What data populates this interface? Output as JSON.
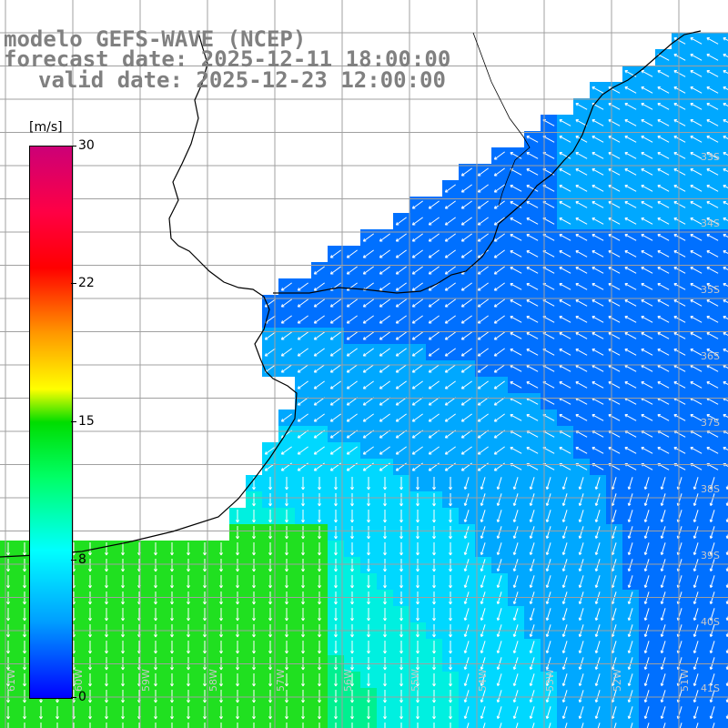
{
  "title": {
    "model": "modelo GEFS-WAVE (NCEP)",
    "forecast": "forecast date: 2025-12-11 18:00:00",
    "valid": "valid date: 2025-12-23 12:00:00"
  },
  "colorbar": {
    "unit": "[m/s]",
    "ticks": [
      "30",
      "22",
      "15",
      "8",
      "0"
    ],
    "range": [
      0,
      30
    ],
    "colors": [
      "#0000ff",
      "#00a0ff",
      "#00ffff",
      "#00ff66",
      "#00dd00",
      "#ffff00",
      "#ff9900",
      "#ff0000",
      "#cc0077"
    ]
  },
  "lon_labels": [
    "61W",
    "60W",
    "59W",
    "58W",
    "57W",
    "56W",
    "55W",
    "54W",
    "53W",
    "52W",
    "51W"
  ],
  "lat_labels": [
    "33S",
    "34S",
    "35S",
    "36S",
    "37S",
    "38S",
    "39S",
    "40S",
    "41S"
  ],
  "map_colors": {
    "land": "#ffffff",
    "coast": "#000000",
    "grid": "#a0a0a0",
    "arrow": "#ffffff"
  }
}
